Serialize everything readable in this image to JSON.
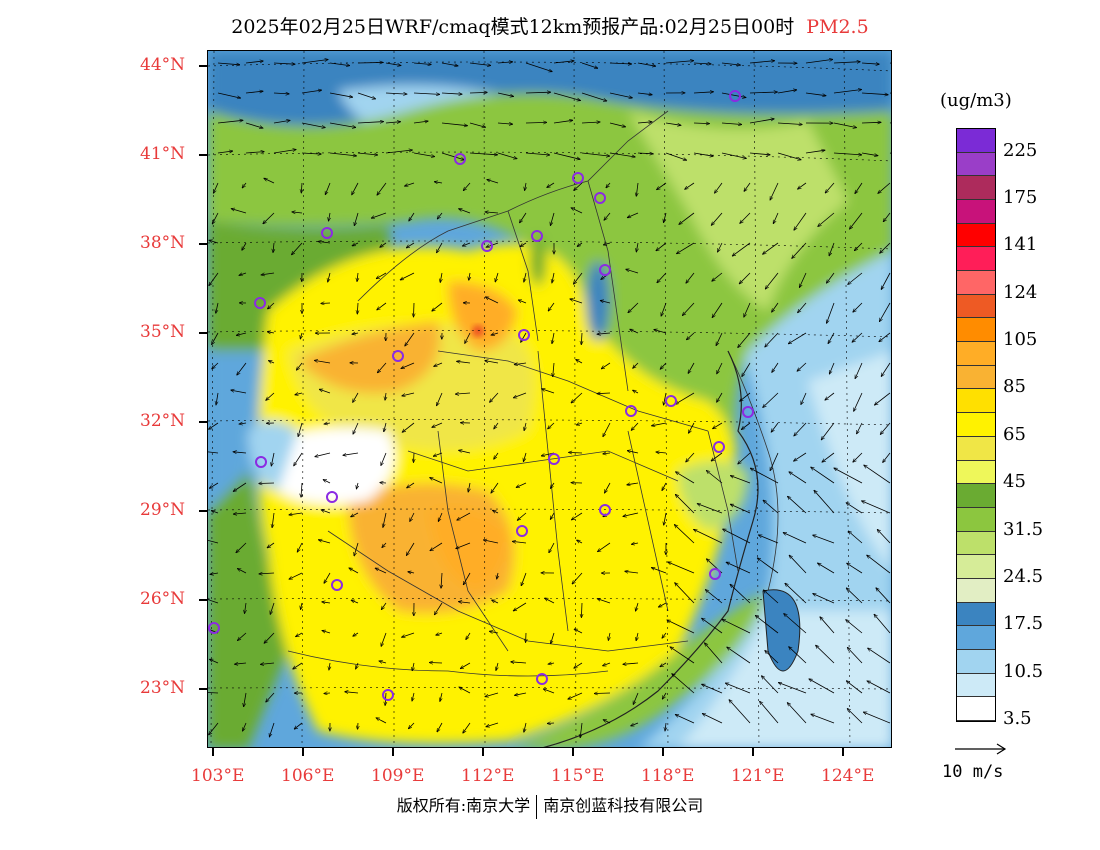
{
  "title": {
    "main": "2025年02月25日WRF/cmaq模式12km预报产品:02月25日00时",
    "species": "PM2.5"
  },
  "axes": {
    "lat_labels": [
      "44°N",
      "41°N",
      "38°N",
      "35°N",
      "32°N",
      "29°N",
      "26°N",
      "23°N"
    ],
    "lon_labels": [
      "103°E",
      "106°E",
      "109°E",
      "112°E",
      "115°E",
      "118°E",
      "121°E",
      "124°E"
    ]
  },
  "colorbar": {
    "unit": "(ug/m3)",
    "labels": [
      "225",
      "175",
      "141",
      "124",
      "105",
      "85",
      "65",
      "45",
      "31.5",
      "24.5",
      "17.5",
      "10.5",
      "3.5"
    ],
    "colors": [
      "#7b2bd6",
      "#9a3ec8",
      "#ad2b5c",
      "#c8127a",
      "#ff0000",
      "#ff1e58",
      "#ff6666",
      "#ee5a24",
      "#ff8c00",
      "#ffad26",
      "#f9b233",
      "#ffe000",
      "#fff200",
      "#f0e646",
      "#eef75a",
      "#6aab32",
      "#8cc63f",
      "#bde06a",
      "#d6ec98",
      "#e2eec4",
      "#3b84c0",
      "#5fa7dc",
      "#a1d4f0",
      "#cdeaf7",
      "#ffffff"
    ]
  },
  "wind_reference": {
    "label": "10 m/s"
  },
  "footer": {
    "copyright": "版权所有:南京大学",
    "company": "南京创蓝科技有限公司"
  }
}
